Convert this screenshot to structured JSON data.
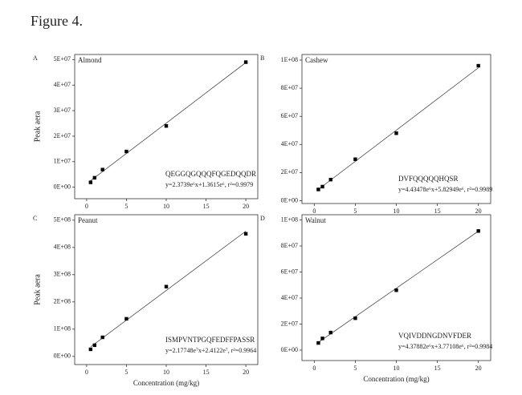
{
  "figure_title": "Figure 4.",
  "chart_data": [
    {
      "type": "scatter",
      "panel": "A",
      "title": "Almond",
      "annotation": "QEGGQGQQQFQGEDQQDR",
      "equation": "y=2.3739e⁶x+1.3615e⁶, r²=0.9979",
      "fit": {
        "slope": 2373900,
        "intercept": 1361500
      },
      "ylabel": "Peak aera",
      "color": "#000000",
      "x": [
        0.5,
        1,
        2,
        5,
        10,
        20
      ],
      "values": [
        1900000,
        3700000,
        6900000,
        14000000,
        24000000,
        49000000
      ],
      "xlim": [
        -1.5,
        21.5
      ],
      "xticks": [
        0,
        5,
        10,
        15,
        20
      ],
      "ylim": [
        -4500000,
        52000000
      ],
      "yticks": [
        {
          "value": 0,
          "label": "0E+00"
        },
        {
          "value": 10000000,
          "label": "1E+07"
        },
        {
          "value": 20000000,
          "label": "2E+07"
        },
        {
          "value": 30000000,
          "label": "3E+07"
        },
        {
          "value": 40000000,
          "label": "4E+07"
        },
        {
          "value": 50000000,
          "label": "5E+07"
        }
      ]
    },
    {
      "type": "scatter",
      "panel": "B",
      "title": "Cashew",
      "annotation": "DVFQQQQQHQSR",
      "equation": "y=4.43478e⁶x+5.82949e⁶, r²=0.9989",
      "fit": {
        "slope": 4434780,
        "intercept": 5829490
      },
      "color": "#000000",
      "x": [
        0.5,
        1,
        2,
        5,
        10,
        20
      ],
      "values": [
        8000000,
        10000000,
        15000000,
        29500000,
        48000000,
        96000000
      ],
      "xlim": [
        -1.5,
        21.5
      ],
      "xticks": [
        0,
        5,
        10,
        15,
        20
      ],
      "ylim": [
        -2000000,
        104000000
      ],
      "yticks": [
        {
          "value": 0,
          "label": "0E+00"
        },
        {
          "value": 20000000,
          "label": "2E+07"
        },
        {
          "value": 40000000,
          "label": "4E+07"
        },
        {
          "value": 60000000,
          "label": "6E+07"
        },
        {
          "value": 80000000,
          "label": "8E+07"
        },
        {
          "value": 100000000,
          "label": "1E+08"
        }
      ]
    },
    {
      "type": "scatter",
      "panel": "C",
      "title": "Peanut",
      "annotation": "ISMPVNTPGQFEDFFPASSR",
      "equation": "y=2.17748e⁷x+2.4122e⁷, r²=0.9964",
      "fit": {
        "slope": 21774800,
        "intercept": 24122000
      },
      "ylabel": "Peak aera",
      "xlabel": "Concentration (mg/kg)",
      "color": "#000000",
      "x": [
        0.5,
        1,
        2,
        5,
        10,
        20
      ],
      "values": [
        26000000,
        41000000,
        70000000,
        138000000,
        256000000,
        450000000
      ],
      "xlim": [
        -1.5,
        21.5
      ],
      "xticks": [
        0,
        5,
        10,
        15,
        20
      ],
      "ylim": [
        -30000000,
        520000000
      ],
      "yticks": [
        {
          "value": 0,
          "label": "0E+00"
        },
        {
          "value": 100000000,
          "label": "1E+08"
        },
        {
          "value": 200000000,
          "label": "2E+08"
        },
        {
          "value": 300000000,
          "label": "3E+08"
        },
        {
          "value": 400000000,
          "label": "4E+08"
        },
        {
          "value": 500000000,
          "label": "5E+08"
        }
      ]
    },
    {
      "type": "scatter",
      "panel": "D",
      "title": "Walnut",
      "annotation": "VQIVDDNGDNVFDER",
      "equation": "y=4.37882e⁶x+3.77108e⁶, r²=0.9984",
      "fit": {
        "slope": 4378820,
        "intercept": 3771080
      },
      "xlabel": "Concentration (mg/kg)",
      "color": "#000000",
      "x": [
        0.5,
        1,
        2,
        5,
        10,
        20
      ],
      "values": [
        5500000,
        9000000,
        13500000,
        24500000,
        46000000,
        91500000
      ],
      "xlim": [
        -1.5,
        21.5
      ],
      "xticks": [
        0,
        5,
        10,
        15,
        20
      ],
      "ylim": [
        -8000000,
        104000000
      ],
      "yticks": [
        {
          "value": 0,
          "label": "0E+00"
        },
        {
          "value": 20000000,
          "label": "2E+07"
        },
        {
          "value": 40000000,
          "label": "4E+07"
        },
        {
          "value": 60000000,
          "label": "6E+07"
        },
        {
          "value": 80000000,
          "label": "8E+07"
        },
        {
          "value": 100000000,
          "label": "1E+08"
        }
      ]
    }
  ]
}
